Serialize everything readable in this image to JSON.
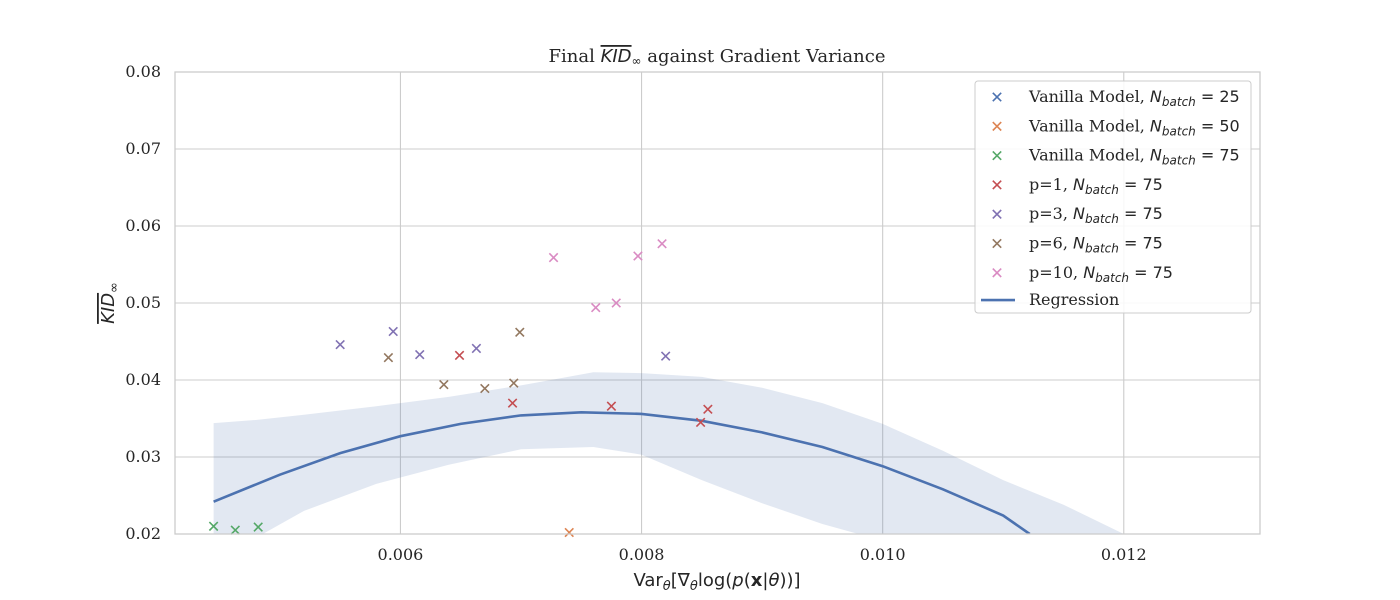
{
  "chart_data": {
    "type": "scatter",
    "title": "Final KID∞ against Gradient Variance",
    "xlabel": "Varθ[∇θlog(p(x|θ))]",
    "ylabel": "KID∞",
    "xlim": [
      0.00413,
      0.01313
    ],
    "ylim": [
      0.02,
      0.08
    ],
    "xticks": [
      "0.006",
      "0.008",
      "0.010",
      "0.012"
    ],
    "xtick_values": [
      0.006,
      0.008,
      0.01,
      0.012
    ],
    "yticks": [
      "0.02",
      "0.03",
      "0.04",
      "0.05",
      "0.06",
      "0.07",
      "0.08"
    ],
    "ytick_values": [
      0.02,
      0.03,
      0.04,
      0.05,
      0.06,
      0.07,
      0.08
    ],
    "grid": true,
    "legend_position": "top-right",
    "series": [
      {
        "name": "Vanilla Model, N_batch = 25",
        "label_prefix": "Vanilla Model, ",
        "n_value": "25",
        "color": "#4c72b0",
        "marker": "x",
        "points": []
      },
      {
        "name": "Vanilla Model, N_batch = 50",
        "label_prefix": "Vanilla Model, ",
        "n_value": "50",
        "color": "#dd8452",
        "marker": "x",
        "points": [
          [
            0.0074,
            0.0202
          ]
        ]
      },
      {
        "name": "Vanilla Model, N_batch = 75",
        "label_prefix": "Vanilla Model, ",
        "n_value": "75",
        "color": "#55a868",
        "marker": "x",
        "points": [
          [
            0.00445,
            0.021
          ],
          [
            0.00463,
            0.0205
          ],
          [
            0.00482,
            0.0209
          ]
        ]
      },
      {
        "name": "p=1, N_batch = 75",
        "label_prefix": "p=1, ",
        "n_value": "75",
        "color": "#c44e52",
        "marker": "x",
        "points": [
          [
            0.00649,
            0.0432
          ],
          [
            0.00693,
            0.037
          ],
          [
            0.00775,
            0.0366
          ],
          [
            0.00849,
            0.0345
          ],
          [
            0.00855,
            0.0362
          ]
        ]
      },
      {
        "name": "p=3, N_batch = 75",
        "label_prefix": "p=3, ",
        "n_value": "75",
        "color": "#8172b3",
        "marker": "x",
        "points": [
          [
            0.0055,
            0.0446
          ],
          [
            0.00594,
            0.0463
          ],
          [
            0.00616,
            0.0433
          ],
          [
            0.00663,
            0.0441
          ],
          [
            0.0082,
            0.0431
          ]
        ]
      },
      {
        "name": "p=6, N_batch = 75",
        "label_prefix": "p=6, ",
        "n_value": "75",
        "color": "#937860",
        "marker": "x",
        "points": [
          [
            0.0059,
            0.0429
          ],
          [
            0.00636,
            0.0394
          ],
          [
            0.0067,
            0.0389
          ],
          [
            0.00694,
            0.0396
          ],
          [
            0.00699,
            0.0462
          ]
        ]
      },
      {
        "name": "p=10, N_batch = 75",
        "label_prefix": "p=10, ",
        "n_value": "75",
        "color": "#da8bc3",
        "marker": "x",
        "points": [
          [
            0.00727,
            0.0559
          ],
          [
            0.00762,
            0.0494
          ],
          [
            0.00779,
            0.05
          ],
          [
            0.00797,
            0.0561
          ],
          [
            0.00817,
            0.0577
          ]
        ]
      }
    ],
    "regression": {
      "name": "Regression",
      "color": "#4c72b0",
      "line": [
        [
          0.00445,
          0.0242
        ],
        [
          0.005,
          0.0277
        ],
        [
          0.0055,
          0.0305
        ],
        [
          0.006,
          0.0327
        ],
        [
          0.0065,
          0.0343
        ],
        [
          0.007,
          0.0354
        ],
        [
          0.0075,
          0.0358
        ],
        [
          0.008,
          0.0356
        ],
        [
          0.0085,
          0.0347
        ],
        [
          0.009,
          0.0332
        ],
        [
          0.0095,
          0.0313
        ],
        [
          0.01,
          0.0288
        ],
        [
          0.0105,
          0.0258
        ],
        [
          0.011,
          0.0224
        ],
        [
          0.01122,
          0.02
        ]
      ],
      "band_upper": [
        [
          0.00445,
          0.0344
        ],
        [
          0.0048,
          0.0348
        ],
        [
          0.0052,
          0.0355
        ],
        [
          0.0058,
          0.0366
        ],
        [
          0.0064,
          0.0378
        ],
        [
          0.007,
          0.0393
        ],
        [
          0.0076,
          0.041
        ],
        [
          0.008,
          0.0409
        ],
        [
          0.0085,
          0.0404
        ],
        [
          0.009,
          0.039
        ],
        [
          0.0095,
          0.037
        ],
        [
          0.01,
          0.0343
        ],
        [
          0.0105,
          0.0308
        ],
        [
          0.011,
          0.027
        ],
        [
          0.0115,
          0.0238
        ],
        [
          0.012,
          0.02
        ]
      ],
      "band_lower": [
        [
          0.00445,
          0.0144
        ],
        [
          0.0048,
          0.0195
        ],
        [
          0.0052,
          0.023
        ],
        [
          0.0058,
          0.0265
        ],
        [
          0.0064,
          0.029
        ],
        [
          0.007,
          0.031
        ],
        [
          0.0076,
          0.0313
        ],
        [
          0.008,
          0.0303
        ],
        [
          0.0085,
          0.027
        ],
        [
          0.009,
          0.024
        ],
        [
          0.0095,
          0.0213
        ],
        [
          0.0098,
          0.02
        ]
      ]
    }
  }
}
